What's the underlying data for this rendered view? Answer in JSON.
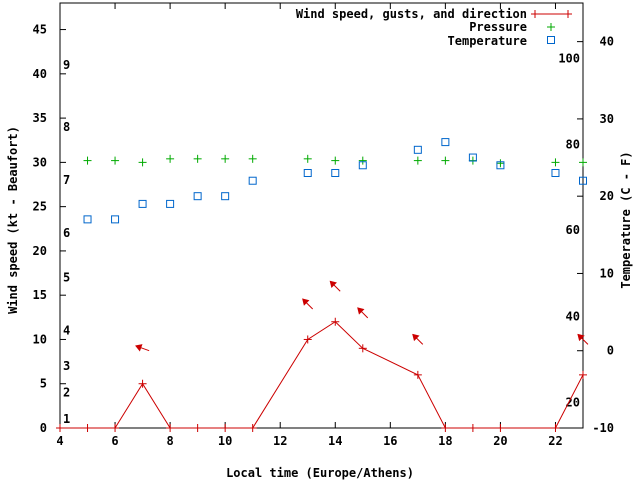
{
  "chart_data": {
    "type": "line",
    "xlabel": "Local time (Europe/Athens)",
    "ylabel_left": "Wind speed (kt - Beaufort)",
    "ylabel_right": "Temperature (C - F)",
    "xlim": [
      4,
      23
    ],
    "x_ticks": [
      4,
      6,
      8,
      10,
      12,
      14,
      16,
      18,
      20,
      22
    ],
    "y_left_lim": [
      0,
      48
    ],
    "y_left_ticks": [
      0,
      5,
      10,
      15,
      20,
      25,
      30,
      35,
      40,
      45
    ],
    "y_right_c_lim": [
      -10,
      45
    ],
    "y_right_c_ticks": [
      -10,
      0,
      10,
      20,
      30,
      40
    ],
    "fahrenheit_ticks": [
      {
        "label": "20",
        "c": -6.7
      },
      {
        "label": "40",
        "c": 4.4
      },
      {
        "label": "60",
        "c": 15.6
      },
      {
        "label": "80",
        "c": 26.7
      },
      {
        "label": "100",
        "c": 37.8
      }
    ],
    "beaufort_ticks": [
      {
        "label": "1",
        "kt": 1
      },
      {
        "label": "2",
        "kt": 4
      },
      {
        "label": "3",
        "kt": 7
      },
      {
        "label": "4",
        "kt": 11
      },
      {
        "label": "5",
        "kt": 17
      },
      {
        "label": "6",
        "kt": 22
      },
      {
        "label": "7",
        "kt": 28
      },
      {
        "label": "8",
        "kt": 34
      },
      {
        "label": "9",
        "kt": 41
      }
    ],
    "series": [
      {
        "name": "Wind speed, gusts, and direction",
        "color": "#cc0000",
        "axis": "left",
        "x": [
          4,
          5,
          6,
          7,
          8,
          9,
          10,
          11,
          13,
          14,
          15,
          17,
          18,
          19,
          20,
          22,
          23
        ],
        "values": [
          0,
          0,
          0,
          5,
          0,
          0,
          0,
          0,
          10,
          12,
          9,
          6,
          0,
          0,
          0,
          0,
          6
        ]
      },
      {
        "name": "Pressure",
        "color": "#00aa00",
        "axis": "left",
        "x": [
          5,
          6,
          7,
          8,
          9,
          10,
          11,
          13,
          14,
          15,
          17,
          18,
          19,
          20,
          22,
          23
        ],
        "values": [
          30.2,
          30.2,
          30.0,
          30.4,
          30.4,
          30.4,
          30.4,
          30.4,
          30.2,
          30.2,
          30.2,
          30.2,
          30.2,
          29.9,
          30.0,
          30.0
        ]
      },
      {
        "name": "Temperature",
        "color": "#0066cc",
        "axis": "right",
        "x": [
          5,
          6,
          7,
          8,
          9,
          10,
          11,
          13,
          14,
          15,
          17,
          18,
          19,
          20,
          22,
          23
        ],
        "values": [
          17,
          17,
          19,
          19,
          20,
          20,
          22,
          23,
          23,
          24,
          26,
          27,
          25,
          24,
          23,
          22
        ]
      }
    ],
    "wind_arrows": [
      {
        "x": 7,
        "kt": 9,
        "dir": 290
      },
      {
        "x": 13,
        "kt": 14,
        "dir": 315
      },
      {
        "x": 14,
        "kt": 16,
        "dir": 315
      },
      {
        "x": 15,
        "kt": 13,
        "dir": 315
      },
      {
        "x": 17,
        "kt": 10,
        "dir": 315
      },
      {
        "x": 23,
        "kt": 10,
        "dir": 315
      }
    ]
  }
}
